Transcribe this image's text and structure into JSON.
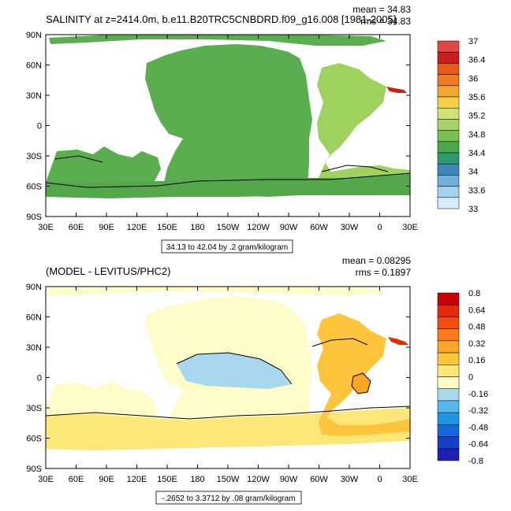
{
  "panels": [
    {
      "title": "SALINITY at z=2414.0m, b.e11.B20TRC5CNBDRD.f09_g16.008 [1981-2005]",
      "stat_mean": "mean = 34.83",
      "stat_rms": "rms = 34.83",
      "contour_info": "34.13 to 42.04 by .2 gram/kilogram",
      "colorbar_labels": [
        "37",
        "36.4",
        "36",
        "35.6",
        "35.2",
        "34.8",
        "34.4",
        "34",
        "33.6",
        "33"
      ],
      "colorbar_colors": [
        "#e04848",
        "#c81e1e",
        "#e85a1a",
        "#f07c20",
        "#f5a531",
        "#f7cf4a",
        "#cfe27a",
        "#a9d36a",
        "#78c150",
        "#4ca848",
        "#2e9b6e",
        "#3f87b8",
        "#6fb0dc",
        "#a4d1ee",
        "#d6ecf8"
      ]
    },
    {
      "title": "(MODEL - LEVITUS/PHC2)",
      "stat_mean": "mean = 0.08295",
      "stat_rms": "rms = 0.1897",
      "contour_info": "-.2652 to 3.3712 by .08 gram/kilogram",
      "colorbar_labels": [
        "0.8",
        "0.64",
        "0.48",
        "0.32",
        "0.16",
        "0",
        "-0.16",
        "-0.32",
        "-0.48",
        "-0.64",
        "-0.8"
      ],
      "colorbar_colors": [
        "#c8000a",
        "#e52a0a",
        "#f34e0c",
        "#f97a16",
        "#fba526",
        "#fdc43c",
        "#fde778",
        "#fefcc8",
        "#a9d8ee",
        "#54b7ea",
        "#1e96e6",
        "#1868dc",
        "#1440cc",
        "#2020b0"
      ]
    }
  ],
  "axis": {
    "x_ticks": [
      "30E",
      "60E",
      "90E",
      "120E",
      "150E",
      "180",
      "150W",
      "120W",
      "90W",
      "60W",
      "30W",
      "0",
      "30E"
    ],
    "y_ticks": [
      "90N",
      "60N",
      "30N",
      "0",
      "30S",
      "60S",
      "90S"
    ]
  },
  "chart_data": [
    {
      "type": "heatmap",
      "title": "SALINITY at z=2414.0m, b.e11.B20TRC5CNBDRD.f09_g16.008 [1981-2005]",
      "x_ticks": [
        "30E",
        "60E",
        "90E",
        "120E",
        "150E",
        "180",
        "150W",
        "120W",
        "90W",
        "60W",
        "30W",
        "0",
        "30E"
      ],
      "y_ticks": [
        "90N",
        "60N",
        "30N",
        "0",
        "30S",
        "60S",
        "90S"
      ],
      "colorbar": [
        33,
        33.6,
        34,
        34.4,
        34.8,
        35.2,
        35.6,
        36,
        36.4,
        37
      ],
      "mean": 34.83,
      "rms": 34.83,
      "contour_min": 34.13,
      "contour_max": 42.04,
      "contour_interval": 0.2,
      "units": "gram/kilogram"
    },
    {
      "type": "heatmap",
      "title": "(MODEL - LEVITUS/PHC2)",
      "x_ticks": [
        "30E",
        "60E",
        "90E",
        "120E",
        "150E",
        "180",
        "150W",
        "120W",
        "90W",
        "60W",
        "30W",
        "0",
        "30E"
      ],
      "y_ticks": [
        "90N",
        "60N",
        "30N",
        "0",
        "30S",
        "60S",
        "90S"
      ],
      "colorbar": [
        -0.8,
        -0.64,
        -0.48,
        -0.32,
        -0.16,
        0,
        0.16,
        0.32,
        0.48,
        0.64,
        0.8
      ],
      "mean": 0.08295,
      "rms": 0.1897,
      "contour_min": -0.2652,
      "contour_max": 3.3712,
      "contour_interval": 0.08,
      "units": "gram/kilogram"
    }
  ]
}
